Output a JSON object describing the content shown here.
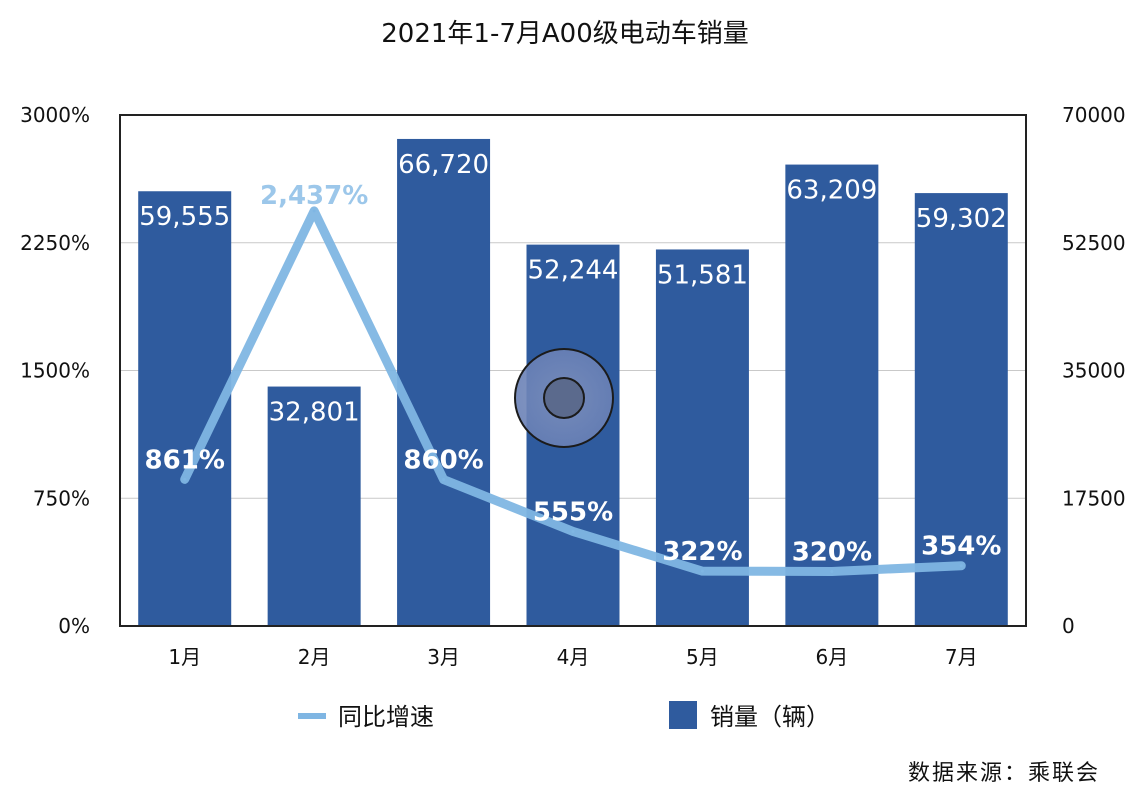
{
  "chart_data": {
    "type": "bar",
    "title": "2021年1-7月A00级电动车销量",
    "categories": [
      "1月",
      "2月",
      "3月",
      "4月",
      "5月",
      "6月",
      "7月"
    ],
    "series": [
      {
        "name": "销量（辆）",
        "type": "bar",
        "axis": "right",
        "values": [
          59555,
          32801,
          66720,
          52244,
          51581,
          63209,
          59302
        ],
        "labels": [
          "59,555",
          "32,801",
          "66,720",
          "52,244",
          "51,581",
          "63,209",
          "59,302"
        ],
        "color": "#2f5b9e"
      },
      {
        "name": "同比增速",
        "type": "line",
        "axis": "left",
        "values": [
          861,
          2437,
          860,
          555,
          322,
          320,
          354
        ],
        "labels": [
          "861%",
          "2,437%",
          "860%",
          "555%",
          "322%",
          "320%",
          "354%"
        ],
        "color": "#7fb6e3"
      }
    ],
    "y_left": {
      "ylim": [
        0,
        3000
      ],
      "ticks": [
        "0%",
        "750%",
        "1500%",
        "2250%",
        "3000%"
      ]
    },
    "y_right": {
      "ylim": [
        0,
        70000
      ],
      "ticks": [
        "0",
        "17500",
        "35000",
        "52500",
        "70000"
      ]
    },
    "grid": true,
    "legend_position": "bottom"
  },
  "source_note": "数据来源：乘联会"
}
